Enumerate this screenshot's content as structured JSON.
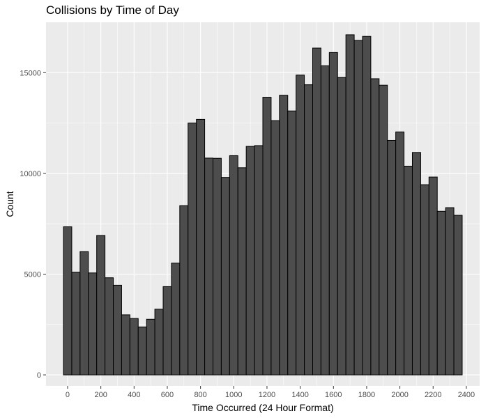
{
  "chart_data": {
    "type": "bar",
    "title": "Collisions by Time of Day",
    "xlabel": "Time Occurred (24 Hour Format)",
    "ylabel": "Count",
    "xlim": [
      -130,
      2480
    ],
    "ylim": [
      -550,
      17500
    ],
    "x_ticks": [
      0,
      200,
      400,
      600,
      800,
      1000,
      1200,
      1400,
      1600,
      1800,
      2000,
      2200,
      2400
    ],
    "y_ticks": [
      0,
      5000,
      10000,
      15000
    ],
    "x_tick_labels": [
      "0",
      "200",
      "400",
      "600",
      "800",
      "1000",
      "1200",
      "1400",
      "1600",
      "1800",
      "2000",
      "2200",
      "2400"
    ],
    "y_tick_labels": [
      "0",
      "5000",
      "10000",
      "15000"
    ],
    "bin_width": 50,
    "bin_start": -25,
    "values": [
      7350,
      5100,
      6120,
      5060,
      6920,
      4820,
      4450,
      2980,
      2800,
      2380,
      2760,
      3260,
      4380,
      5550,
      8400,
      12500,
      12680,
      10760,
      10750,
      9800,
      10880,
      10280,
      11340,
      11380,
      13780,
      12620,
      13880,
      13100,
      14880,
      14400,
      16220,
      15340,
      16000,
      14760,
      16880,
      16600,
      16800,
      14700,
      14380,
      11640,
      12060,
      10360,
      11040,
      9440,
      9820,
      8120,
      8300,
      7920
    ],
    "bar_fill": "#4d4d4d",
    "bar_stroke": "#000000",
    "panel_background": "#ebebeb",
    "grid_color": "#ffffff",
    "grid": true
  }
}
